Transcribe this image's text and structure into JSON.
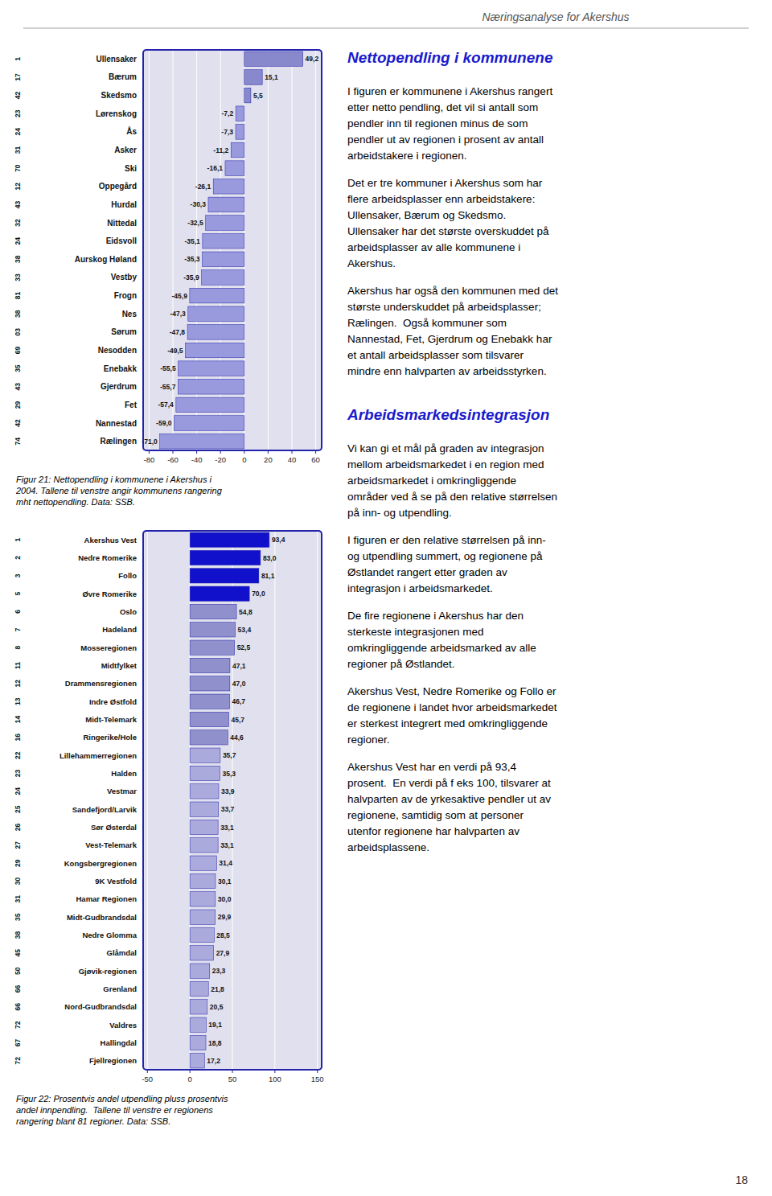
{
  "page": {
    "title": "Næringsanalyse for Akershus",
    "number": "18",
    "sections": [
      {
        "title": "Nettopendling i kommunene",
        "paragraphs": [
          "I figuren er kommunene i Akershus rangert\netter netto pendling, det vil si antall som\npendler inn til regionen minus de som\npendler ut av regionen i prosent av antall\narbeidstakere i regionen.",
          "Det er tre kommuner i Akershus som har\nflere arbeidsplasser enn arbeidstakere:\nUllensaker, Bærum og Skedsmo.\nUllensaker har det største overskuddet på\narbeidsplasser av alle kommunene i\nAkershus.",
          "Akershus har også den kommunen med det\nstørste underskuddet på arbeidsplasser;\nRælingen.  Også kommuner som\nNannestad, Fet, Gjerdrum og Enebakk har\net antall arbeidsplasser som tilsvarer\nmindre enn halvparten av arbeidsstyrken."
        ]
      },
      {
        "title": "Arbeidsmarkedsintegrasjon",
        "paragraphs": [
          "Vi kan gi et mål på graden av integrasjon\nmellom arbeidsmarkedet i en region med\narbeidsmarkedet i omkringliggende\nområder ved å se på den relative størrelsen\npå inn- og utpendling.",
          "I figuren er den relative størrelsen på inn-\nog utpendling summert, og regionene på\nØstlandet rangert etter graden av\nintegrasjon i arbeidsmarkedet.",
          "De fire regionene i Akershus har den\nsterkeste integrasjonen med\nomkringliggende arbeidsmarked av alle\nregioner på Østlandet.",
          "Akershus Vest, Nedre Romerike og Follo er\nde regionene i landet hvor arbeidsmarkedet\ner sterkest integrert med omkringliggende\nregioner.",
          "Akershus Vest har en verdi på 93,4\nprosent.  En verdi på f eks 100, tilsvarer at\nhalvparten av de yrkesaktive pendler ut av\nregionene, samtidig som at personer\nutenfor regionene har halvparten av\narbeidsplassene."
        ]
      }
    ]
  },
  "chart_data": [
    {
      "type": "bar",
      "orientation": "horizontal",
      "title": "Figur 21: Nettopendling i kommunene i Akershus i\n2004. Tallene til venstre angir kommunens rangering\nmht nettopendling. Data: SSB.",
      "categories": [
        "Ullensaker",
        "Bærum",
        "Skedsmo",
        "Lørenskog",
        "Ås",
        "Asker",
        "Ski",
        "Oppegård",
        "Hurdal",
        "Nittedal",
        "Eidsvoll",
        "Aurskog Høland",
        "Vestby",
        "Frogn",
        "Nes",
        "Sørum",
        "Nesodden",
        "Enebakk",
        "Gjerdrum",
        "Fet",
        "Nannestad",
        "Rælingen"
      ],
      "rank_labels": [
        "1",
        "17",
        "42",
        "23",
        "24",
        "31",
        "70",
        "12",
        "43",
        "32",
        "24",
        "38",
        "33",
        "81",
        "38",
        "03",
        "69",
        "35",
        "43",
        "29",
        "42",
        "74"
      ],
      "values": [
        49.2,
        15.1,
        5.5,
        -7.2,
        -7.3,
        -11.2,
        -16.1,
        -26.1,
        -30.3,
        -32.5,
        -35.1,
        -35.3,
        -35.9,
        -45.9,
        -47.3,
        -47.8,
        -49.5,
        -55.5,
        -55.7,
        -57.4,
        -59.0,
        -71.0
      ],
      "value_labels": [
        "49,2",
        "15,1",
        "5,5",
        "-7,2",
        "-7,3",
        "-11,2",
        "-16,1",
        "-26,1",
        "-30,3",
        "-32,5",
        "-35,1",
        "-35,3",
        "-35,9",
        "-45,9",
        "-47,3",
        "-47,8",
        "-49,5",
        "-55,5",
        "-55,7",
        "-57,4",
        "-59,0",
        "-71,0"
      ],
      "data_labels": true,
      "colors": [
        "#8888cc",
        "#8888cc",
        "#8888cc",
        "#9999dd",
        "#9999dd",
        "#9999dd",
        "#9999dd",
        "#9999dd",
        "#9999dd",
        "#9999dd",
        "#9999dd",
        "#9999dd",
        "#9999dd",
        "#9999dd",
        "#9999dd",
        "#9999dd",
        "#9999dd",
        "#9999dd",
        "#9999dd",
        "#9999dd",
        "#9999dd",
        "#9999dd"
      ],
      "xlim": [
        -85,
        65
      ],
      "xticks": [
        -80,
        -60,
        -40,
        -20,
        0,
        20,
        40,
        60
      ],
      "grid": true
    },
    {
      "type": "bar",
      "orientation": "horizontal",
      "title": "Figur 22: Prosentvis andel utpendling pluss prosentvis\nandel innpendling.  Tallene til venstre er regionens\nrangering blant 81 regioner. Data: SSB.",
      "categories": [
        "Akershus Vest",
        "Nedre Romerike",
        "Follo",
        "Øvre Romerike",
        "Oslo",
        "Hadeland",
        "Mosseregionen",
        "Midtfylket",
        "Drammensregionen",
        "Indre Østfold",
        "Midt-Telemark",
        "Ringerike/Hole",
        "Lillehammerregionen",
        "Halden",
        "Vestmar",
        "Sandefjord/Larvik",
        "Sør Østerdal",
        "Vest-Telemark",
        "Kongsbergregionen",
        "9K Vestfold",
        "Hamar Regionen",
        "Midt-Gudbrandsdal",
        "Nedre Glomma",
        "Glåmdal",
        "Gjøvik-regionen",
        "Grenland",
        "Nord-Gudbrandsdal",
        "Valdres",
        "Hallingdal",
        "Fjellregionen"
      ],
      "rank_labels": [
        "1",
        "2",
        "3",
        "5",
        "6",
        "7",
        "8",
        "11",
        "12",
        "13",
        "14",
        "16",
        "22",
        "23",
        "24",
        "25",
        "26",
        "27",
        "29",
        "30",
        "31",
        "35",
        "38",
        "45",
        "50",
        "66",
        "66",
        "72",
        "67",
        "72"
      ],
      "values": [
        93.4,
        83.0,
        81.1,
        70.0,
        54.8,
        53.4,
        52.5,
        47.1,
        47.0,
        46.7,
        45.7,
        44.6,
        35.7,
        35.3,
        33.9,
        33.7,
        33.1,
        33.1,
        31.4,
        30.1,
        30.0,
        29.9,
        28.5,
        27.9,
        23.3,
        21.8,
        20.5,
        19.1,
        18.8,
        17.2
      ],
      "value_labels": [
        "93,4",
        "83,0",
        "81,1",
        "70,0",
        "54,8",
        "53,4",
        "52,5",
        "47,1",
        "47,0",
        "46,7",
        "45,7",
        "44,6",
        "35,7",
        "35,3",
        "33,9",
        "33,7",
        "33,1",
        "33,1",
        "31,4",
        "30,1",
        "30,0",
        "29,9",
        "28,5",
        "27,9",
        "23,3",
        "21,8",
        "20,5",
        "19,1",
        "18,8",
        "17,2"
      ],
      "data_labels": true,
      "colors": [
        "#1111cc",
        "#1111cc",
        "#1111cc",
        "#1111cc",
        "#9090cc",
        "#9090cc",
        "#9090cc",
        "#9090cc",
        "#9090cc",
        "#9090cc",
        "#9090cc",
        "#9090cc",
        "#aaaadd",
        "#aaaadd",
        "#aaaadd",
        "#aaaadd",
        "#aaaadd",
        "#aaaadd",
        "#aaaadd",
        "#aaaadd",
        "#aaaadd",
        "#aaaadd",
        "#aaaadd",
        "#aaaadd",
        "#aaaadd",
        "#aaaadd",
        "#aaaadd",
        "#aaaadd",
        "#aaaadd",
        "#aaaadd"
      ],
      "xlim": [
        -55,
        155
      ],
      "xticks": [
        -50,
        0,
        50,
        100,
        150
      ],
      "grid": true
    }
  ]
}
